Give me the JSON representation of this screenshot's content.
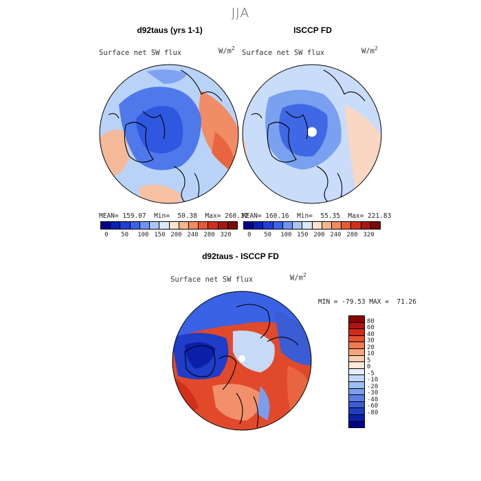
{
  "season": "JJA",
  "panel_left": {
    "title": "d92taus (yrs 1-1)",
    "subtitle": "Surface net SW flux",
    "units": "W/m",
    "units_exp": "2",
    "stats": "MEAN= 159.07  Min=  50.38  Max= 260.32"
  },
  "panel_right": {
    "title": "ISCCP FD",
    "subtitle": "Surface net SW flux",
    "units": "W/m",
    "units_exp": "2",
    "stats": "MEAN= 160.16  Min=  55.35  Max= 221.83"
  },
  "panel_diff": {
    "title": "d92taus - ISCCP FD",
    "subtitle": "Surface net SW flux",
    "units": "W/m",
    "units_exp": "2",
    "stats": "MIN = -79.53 MAX =  71.26"
  },
  "abs_colorbar": {
    "colors": [
      "#00008b",
      "#0a1fb5",
      "#1f3fd8",
      "#3a62ea",
      "#6f94f2",
      "#a9c6f7",
      "#d9e8fb",
      "#fde3d0",
      "#f8b58c",
      "#f28a60",
      "#e75a36",
      "#d2301a",
      "#a31a10",
      "#7a0d0a"
    ],
    "tick_labels": [
      "0",
      "50",
      "100",
      "150",
      "200",
      "240",
      "280",
      "320"
    ]
  },
  "diff_colorbar": {
    "colors_top_to_bottom": [
      "#8b0000",
      "#b3140d",
      "#d42a17",
      "#e9502f",
      "#f07a52",
      "#f6a47e",
      "#fbcdb2",
      "#fde9dc",
      "#e4eefc",
      "#c3d8f7",
      "#9ebdf1",
      "#7b9ded",
      "#5a7de4",
      "#3a5cd5",
      "#1f3dc0",
      "#0b1fa8",
      "#00008b"
    ],
    "labels": [
      "80",
      "60",
      "40",
      "30",
      "20",
      "10",
      "5",
      "0",
      "-5",
      "-10",
      "-20",
      "-30",
      "-40",
      "-60",
      "-80"
    ]
  }
}
